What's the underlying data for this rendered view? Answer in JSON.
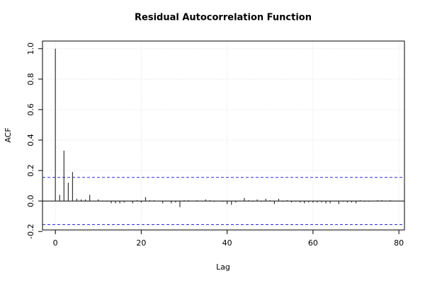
{
  "chart_data": {
    "type": "stem",
    "title": "Residual Autocorrelation Function",
    "x_label": "Lag",
    "y_label": "ACF",
    "x": [
      0,
      1,
      2,
      3,
      4,
      5,
      6,
      7,
      8,
      9,
      10,
      11,
      12,
      13,
      14,
      15,
      16,
      17,
      18,
      19,
      20,
      21,
      22,
      23,
      24,
      25,
      26,
      27,
      28,
      29,
      30,
      31,
      32,
      33,
      34,
      35,
      36,
      37,
      38,
      39,
      40,
      41,
      42,
      43,
      44,
      45,
      46,
      47,
      48,
      49,
      50,
      51,
      52,
      53,
      54,
      55,
      56,
      57,
      58,
      59,
      60,
      61,
      62,
      63,
      64,
      65,
      66,
      67,
      68,
      69,
      70,
      71,
      72,
      73,
      74,
      75,
      76,
      77,
      78
    ],
    "values": [
      1.0,
      0.04,
      0.33,
      0.12,
      0.19,
      0.015,
      0.01,
      0.01,
      0.04,
      0.0,
      0.01,
      -0.005,
      -0.005,
      -0.015,
      -0.015,
      -0.015,
      -0.01,
      0.0,
      -0.015,
      0.005,
      -0.01,
      0.025,
      0.005,
      0.005,
      0.0,
      -0.015,
      0.0,
      -0.015,
      -0.01,
      -0.04,
      0.005,
      0.005,
      0.0,
      0.005,
      0.0,
      0.01,
      0.005,
      -0.005,
      0.0,
      -0.005,
      -0.02,
      -0.025,
      -0.01,
      0.0,
      0.02,
      0.005,
      -0.005,
      0.01,
      -0.005,
      0.015,
      0.005,
      -0.02,
      0.015,
      -0.005,
      0.005,
      -0.01,
      -0.005,
      -0.01,
      -0.015,
      -0.01,
      -0.01,
      -0.01,
      -0.01,
      -0.015,
      -0.015,
      0.0,
      -0.02,
      -0.005,
      -0.01,
      -0.01,
      -0.015,
      0.005,
      -0.005,
      -0.005,
      0.0,
      0.005,
      0.005,
      0.0,
      0.005
    ],
    "color": "#333333",
    "confidence_bounds": [
      0.155,
      -0.155
    ],
    "confidence_color": "#2b2bd9",
    "xlim": [
      -3,
      81.3
    ],
    "ylim": [
      -0.19,
      1.05
    ],
    "xticks": [
      0,
      20,
      40,
      60,
      80
    ],
    "yticks": [
      -0.2,
      {
        "value": 0,
        "label": "0.0"
      },
      0.2,
      0.4,
      0.6,
      0.8,
      {
        "value": 1,
        "label": "1.0"
      }
    ],
    "grid": true
  }
}
